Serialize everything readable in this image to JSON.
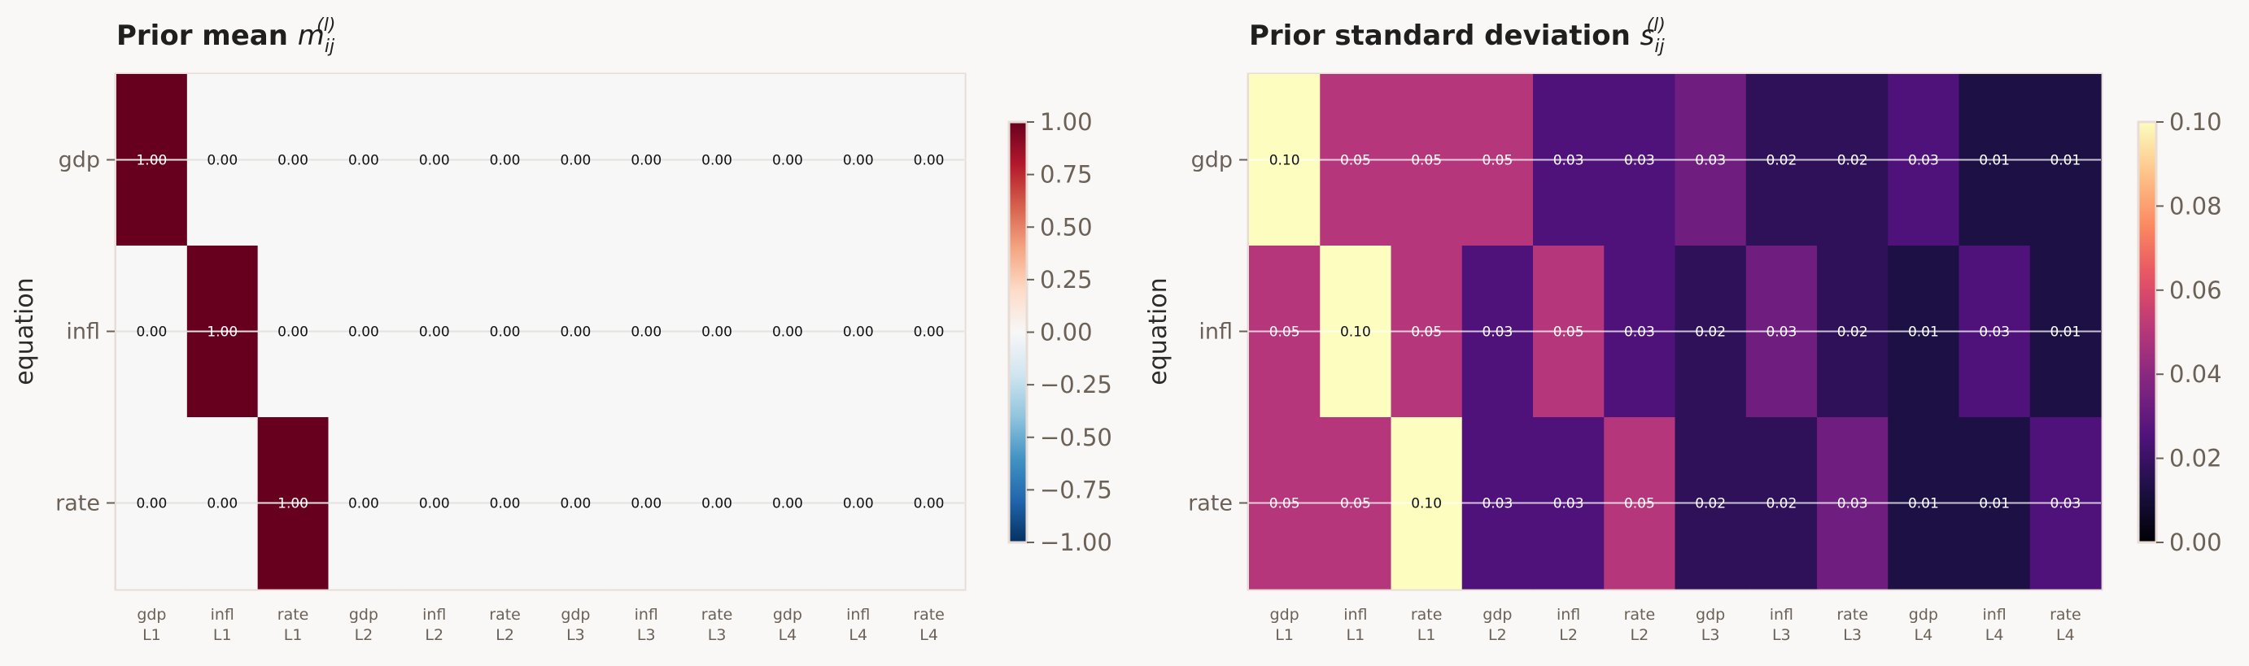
{
  "chart_data": [
    {
      "type": "heatmap",
      "title_text": "Prior mean ",
      "title_symbol": "m",
      "title_sub": "ij",
      "title_sup": "(l)",
      "xlabel": "",
      "ylabel": "equation",
      "rows": [
        "gdp",
        "infl",
        "rate"
      ],
      "cols": [
        [
          "gdp",
          "L1"
        ],
        [
          "infl",
          "L1"
        ],
        [
          "rate",
          "L1"
        ],
        [
          "gdp",
          "L2"
        ],
        [
          "infl",
          "L2"
        ],
        [
          "rate",
          "L2"
        ],
        [
          "gdp",
          "L3"
        ],
        [
          "infl",
          "L3"
        ],
        [
          "rate",
          "L3"
        ],
        [
          "gdp",
          "L4"
        ],
        [
          "infl",
          "L4"
        ],
        [
          "rate",
          "L4"
        ]
      ],
      "values": [
        [
          1.0,
          0.0,
          0.0,
          0.0,
          0.0,
          0.0,
          0.0,
          0.0,
          0.0,
          0.0,
          0.0,
          0.0
        ],
        [
          0.0,
          1.0,
          0.0,
          0.0,
          0.0,
          0.0,
          0.0,
          0.0,
          0.0,
          0.0,
          0.0,
          0.0
        ],
        [
          0.0,
          0.0,
          1.0,
          0.0,
          0.0,
          0.0,
          0.0,
          0.0,
          0.0,
          0.0,
          0.0,
          0.0
        ]
      ],
      "colormap": "RdBu_r",
      "vmin": -1.0,
      "vmax": 1.0,
      "colorbar_ticks": [
        "1.00",
        "0.75",
        "0.50",
        "0.25",
        "0.00",
        "−0.25",
        "−0.50",
        "−0.75",
        "−1.00"
      ],
      "colorbar_values": [
        1.0,
        0.75,
        0.5,
        0.25,
        0.0,
        -0.25,
        -0.5,
        -0.75,
        -1.0
      ],
      "value_format_decimals": 2
    },
    {
      "type": "heatmap",
      "title_text": "Prior standard deviation ",
      "title_symbol": "s",
      "title_sub": "ij",
      "title_sup": "(l)",
      "xlabel": "",
      "ylabel": "equation",
      "rows": [
        "gdp",
        "infl",
        "rate"
      ],
      "cols": [
        [
          "gdp",
          "L1"
        ],
        [
          "infl",
          "L1"
        ],
        [
          "rate",
          "L1"
        ],
        [
          "gdp",
          "L2"
        ],
        [
          "infl",
          "L2"
        ],
        [
          "rate",
          "L2"
        ],
        [
          "gdp",
          "L3"
        ],
        [
          "infl",
          "L3"
        ],
        [
          "rate",
          "L3"
        ],
        [
          "gdp",
          "L4"
        ],
        [
          "infl",
          "L4"
        ],
        [
          "rate",
          "L4"
        ]
      ],
      "values": [
        [
          0.1,
          0.05,
          0.05,
          0.05,
          0.025,
          0.025,
          0.033,
          0.017,
          0.017,
          0.025,
          0.0125,
          0.0125
        ],
        [
          0.05,
          0.1,
          0.05,
          0.025,
          0.05,
          0.025,
          0.017,
          0.033,
          0.017,
          0.0125,
          0.025,
          0.0125
        ],
        [
          0.05,
          0.05,
          0.1,
          0.025,
          0.025,
          0.05,
          0.017,
          0.017,
          0.033,
          0.0125,
          0.0125,
          0.025
        ]
      ],
      "cell_labels": [
        [
          "0.10",
          "0.05",
          "0.05",
          "0.05",
          "0.03",
          "0.03",
          "0.03",
          "0.02",
          "0.02",
          "0.03",
          "0.01",
          "0.01"
        ],
        [
          "0.05",
          "0.10",
          "0.05",
          "0.03",
          "0.05",
          "0.03",
          "0.02",
          "0.03",
          "0.02",
          "0.01",
          "0.03",
          "0.01"
        ],
        [
          "0.05",
          "0.05",
          "0.10",
          "0.03",
          "0.03",
          "0.05",
          "0.02",
          "0.02",
          "0.03",
          "0.01",
          "0.01",
          "0.03"
        ]
      ],
      "colormap": "magma",
      "vmin": 0.0,
      "vmax": 0.1,
      "colorbar_ticks": [
        "0.10",
        "0.08",
        "0.06",
        "0.04",
        "0.02",
        "0.00"
      ],
      "colorbar_values": [
        0.1,
        0.08,
        0.06,
        0.04,
        0.02,
        0.0
      ]
    }
  ]
}
